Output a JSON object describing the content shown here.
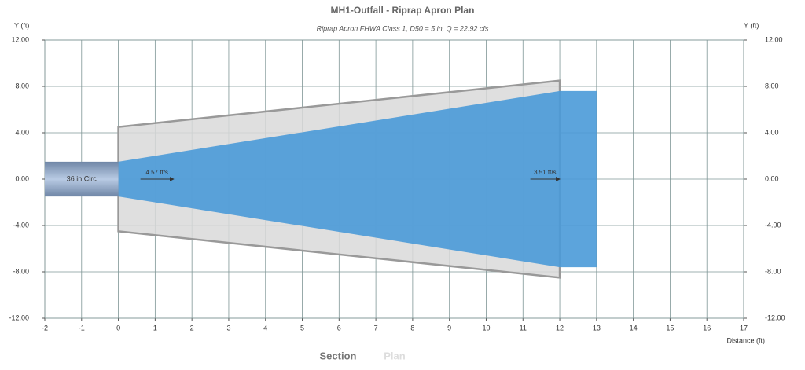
{
  "chart_data": {
    "type": "plan",
    "title": "MH1-Outfall - Riprap Apron Plan",
    "subtitle": "Riprap Apron FHWA Class 1, D50 = 5 in, Q = 22.92 cfs",
    "ylabel": "Y (ft)",
    "y2label": "Y (ft)",
    "xlabel": "Distance (ft)",
    "xlim": [
      -2,
      17
    ],
    "xticks": [
      -2,
      -1,
      0,
      1,
      2,
      3,
      4,
      5,
      6,
      7,
      8,
      9,
      10,
      11,
      12,
      13,
      14,
      15,
      16,
      17
    ],
    "ylim": [
      -12,
      12
    ],
    "yticks": [
      {
        "value": -12,
        "label": "-12.00"
      },
      {
        "value": -8,
        "label": "-8.00"
      },
      {
        "value": -4,
        "label": "-4.00"
      },
      {
        "value": 0,
        "label": "0.00"
      },
      {
        "value": 4,
        "label": "4.00"
      },
      {
        "value": 8,
        "label": "8.00"
      },
      {
        "value": 12,
        "label": "12.00"
      }
    ],
    "y2lim": [
      -12,
      12
    ],
    "y2ticks": [
      {
        "value": -12,
        "label": "-12.00"
      },
      {
        "value": -8,
        "label": "-8.00"
      },
      {
        "value": -4,
        "label": "-4.00"
      },
      {
        "value": 0,
        "label": "0.00"
      },
      {
        "value": 4,
        "label": "4.00"
      },
      {
        "value": 8,
        "label": "8.00"
      },
      {
        "value": 12,
        "label": "12.00"
      }
    ],
    "grid": true,
    "apron": {
      "color": "#d9d9d9",
      "stroke": "#999999",
      "x": [
        0,
        12,
        12,
        0
      ],
      "y": [
        4.5,
        8.5,
        -8.5,
        -4.5
      ]
    },
    "flow": {
      "color": "#4a9ad8",
      "x": [
        0,
        12,
        13,
        13,
        12,
        0
      ],
      "y": [
        1.5,
        7.6,
        7.6,
        -7.6,
        -7.6,
        -1.5
      ]
    },
    "pipe": {
      "label": "36 in Circ",
      "x": [
        -2,
        0
      ],
      "y": [
        -1.5,
        1.5
      ]
    },
    "velocities": [
      {
        "label": "4.57 ft/s",
        "x": [
          0.6,
          1.5
        ],
        "y": 0
      },
      {
        "label": "3.51 ft/s",
        "x": [
          11.2,
          12
        ],
        "y": 0
      }
    ]
  },
  "tabs": [
    "Section",
    "Plan"
  ]
}
